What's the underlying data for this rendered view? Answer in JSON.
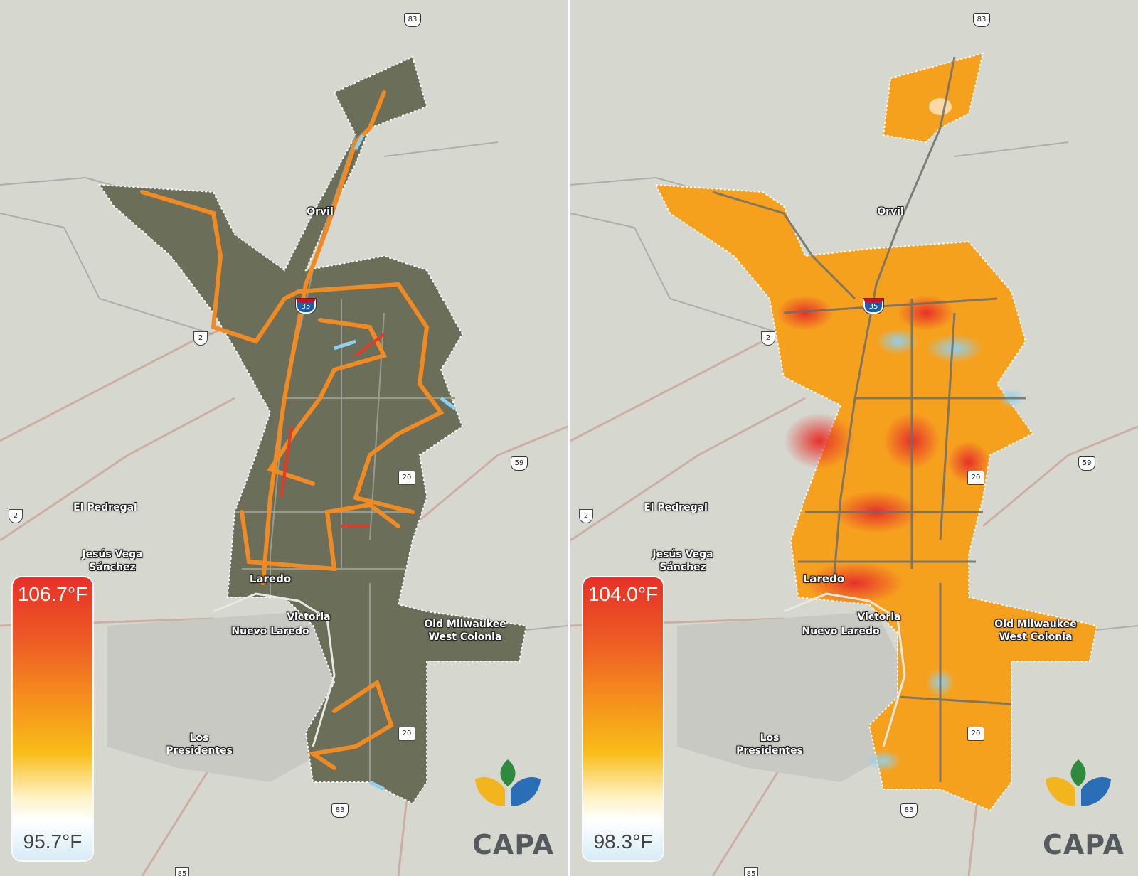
{
  "panels": [
    {
      "id": "left",
      "legend": {
        "max": "106.7°F",
        "min": "95.7°F"
      },
      "logo": "CAPA"
    },
    {
      "id": "right",
      "legend": {
        "max": "104.0°F",
        "min": "98.3°F"
      },
      "logo": "CAPA"
    }
  ],
  "places": {
    "orvil": "Orvil",
    "el_pedregal": "El Pedregal",
    "jesus_vega_1": "Jesús Vega",
    "jesus_vega_2": "Sánchez",
    "laredo": "Laredo",
    "victoria": "Victoria",
    "nuevo_laredo": "Nuevo Laredo",
    "old_milwaukee_1": "Old Milwaukee",
    "old_milwaukee_2": "West Colonia",
    "los_presidentes_1": "Los",
    "los_presidentes_2": "Presidentes"
  },
  "shields": {
    "us83": "83",
    "i35": "35",
    "mx2": "2",
    "us59": "59",
    "s20": "20",
    "mx85": "85"
  },
  "colors": {
    "hot": "#e6312a",
    "warm": "#f5941c",
    "mild": "#f8bd18",
    "cool": "#8fd0ef",
    "logo_green": "#2f8a3e",
    "logo_yellow": "#f2b51d",
    "logo_blue": "#2a6fb5"
  }
}
